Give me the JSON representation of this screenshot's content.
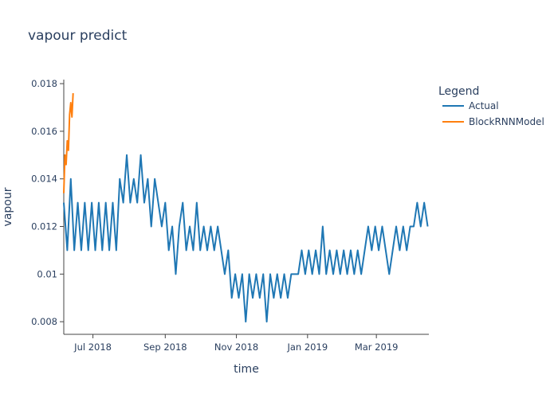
{
  "chart_data": {
    "type": "line",
    "title": "vapour predict",
    "x_label": "time",
    "y_label": "vapour",
    "legend_title": "Legend",
    "legend_position": "right",
    "xlim": [
      "2018-06-06",
      "2019-04-15"
    ],
    "xticks": [
      {
        "value": "2018-07-01",
        "label": "Jul 2018"
      },
      {
        "value": "2018-09-01",
        "label": "Sep 2018"
      },
      {
        "value": "2018-11-01",
        "label": "Nov 2018"
      },
      {
        "value": "2019-01-01",
        "label": "Jan 2019"
      },
      {
        "value": "2019-03-01",
        "label": "Mar 2019"
      }
    ],
    "ylim": [
      0.00747,
      0.01817
    ],
    "yticks": [
      0.008,
      0.01,
      0.012,
      0.014,
      0.016,
      0.018
    ],
    "grid": false,
    "series": [
      {
        "name": "Actual",
        "color": "#1f77b4",
        "x": [
          "2018-06-06",
          "2018-06-09",
          "2018-06-12",
          "2018-06-15",
          "2018-06-18",
          "2018-06-21",
          "2018-06-24",
          "2018-06-27",
          "2018-06-30",
          "2018-07-03",
          "2018-07-06",
          "2018-07-09",
          "2018-07-12",
          "2018-07-15",
          "2018-07-18",
          "2018-07-21",
          "2018-07-24",
          "2018-07-27",
          "2018-07-30",
          "2018-08-02",
          "2018-08-05",
          "2018-08-08",
          "2018-08-11",
          "2018-08-14",
          "2018-08-17",
          "2018-08-20",
          "2018-08-23",
          "2018-08-26",
          "2018-08-29",
          "2018-09-01",
          "2018-09-04",
          "2018-09-07",
          "2018-09-10",
          "2018-09-13",
          "2018-09-16",
          "2018-09-19",
          "2018-09-22",
          "2018-09-25",
          "2018-09-28",
          "2018-10-01",
          "2018-10-04",
          "2018-10-07",
          "2018-10-10",
          "2018-10-13",
          "2018-10-16",
          "2018-10-19",
          "2018-10-22",
          "2018-10-25",
          "2018-10-28",
          "2018-10-31",
          "2018-11-03",
          "2018-11-06",
          "2018-11-09",
          "2018-11-12",
          "2018-11-15",
          "2018-11-18",
          "2018-11-21",
          "2018-11-24",
          "2018-11-27",
          "2018-11-30",
          "2018-12-03",
          "2018-12-06",
          "2018-12-09",
          "2018-12-12",
          "2018-12-15",
          "2018-12-18",
          "2018-12-21",
          "2018-12-24",
          "2018-12-27",
          "2018-12-30",
          "2019-01-02",
          "2019-01-05",
          "2019-01-08",
          "2019-01-11",
          "2019-01-14",
          "2019-01-17",
          "2019-01-20",
          "2019-01-23",
          "2019-01-26",
          "2019-01-29",
          "2019-02-01",
          "2019-02-04",
          "2019-02-07",
          "2019-02-10",
          "2019-02-13",
          "2019-02-16",
          "2019-02-19",
          "2019-02-22",
          "2019-02-25",
          "2019-02-28",
          "2019-03-03",
          "2019-03-06",
          "2019-03-09",
          "2019-03-12",
          "2019-03-15",
          "2019-03-18",
          "2019-03-21",
          "2019-03-24",
          "2019-03-27",
          "2019-03-30",
          "2019-04-02",
          "2019-04-05",
          "2019-04-08",
          "2019-04-11",
          "2019-04-14"
        ],
        "values": [
          0.013,
          0.011,
          0.014,
          0.011,
          0.013,
          0.011,
          0.013,
          0.011,
          0.013,
          0.011,
          0.013,
          0.011,
          0.013,
          0.011,
          0.013,
          0.011,
          0.014,
          0.013,
          0.015,
          0.013,
          0.014,
          0.013,
          0.015,
          0.013,
          0.014,
          0.012,
          0.014,
          0.013,
          0.012,
          0.013,
          0.011,
          0.012,
          0.01,
          0.012,
          0.013,
          0.011,
          0.012,
          0.011,
          0.013,
          0.011,
          0.012,
          0.011,
          0.012,
          0.011,
          0.012,
          0.011,
          0.01,
          0.011,
          0.009,
          0.01,
          0.009,
          0.01,
          0.008,
          0.01,
          0.009,
          0.01,
          0.009,
          0.01,
          0.008,
          0.01,
          0.009,
          0.01,
          0.009,
          0.01,
          0.009,
          0.01,
          0.01,
          0.01,
          0.011,
          0.01,
          0.011,
          0.01,
          0.011,
          0.01,
          0.012,
          0.01,
          0.011,
          0.01,
          0.011,
          0.01,
          0.011,
          0.01,
          0.011,
          0.01,
          0.011,
          0.01,
          0.011,
          0.012,
          0.011,
          0.012,
          0.011,
          0.012,
          0.011,
          0.01,
          0.011,
          0.012,
          0.011,
          0.012,
          0.011,
          0.012,
          0.012,
          0.013,
          0.012,
          0.013,
          0.012
        ]
      },
      {
        "name": "BlockRNNModel",
        "color": "#ff7f0e",
        "x": [
          "2018-06-06",
          "2018-06-07",
          "2018-06-08",
          "2018-06-09",
          "2018-06-10",
          "2018-06-11",
          "2018-06-12",
          "2018-06-13",
          "2018-06-14"
        ],
        "values": [
          0.0134,
          0.015,
          0.0146,
          0.0156,
          0.0152,
          0.0167,
          0.0172,
          0.0166,
          0.0176
        ]
      }
    ]
  }
}
